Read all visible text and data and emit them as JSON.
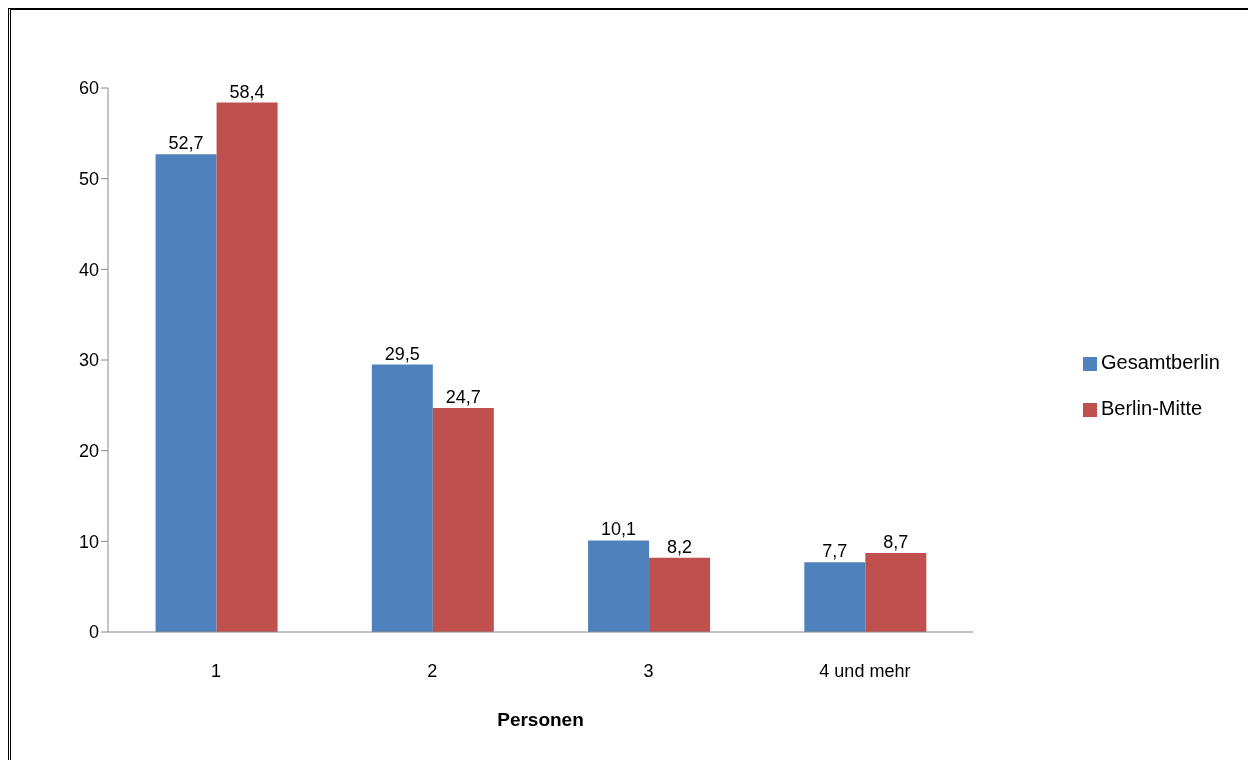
{
  "chart_data": {
    "type": "bar",
    "xlabel": "Personen",
    "categories": [
      "1",
      "2",
      "3",
      "4 und mehr"
    ],
    "series": [
      {
        "name": "Gesamtberlin",
        "color": "#4f81bd",
        "values": [
          52.7,
          29.5,
          10.1,
          7.7
        ],
        "value_labels": [
          "52,7",
          "29,5",
          "10,1",
          "7,7"
        ]
      },
      {
        "name": "Berlin-Mitte",
        "color": "#c0504d",
        "values": [
          58.4,
          24.7,
          8.2,
          8.7
        ],
        "value_labels": [
          "58,4",
          "24,7",
          "8,2",
          "8,7"
        ]
      }
    ],
    "ylim": [
      0,
      60
    ],
    "yticks": [
      0,
      10,
      20,
      30,
      40,
      50,
      60
    ],
    "legend": "right"
  }
}
